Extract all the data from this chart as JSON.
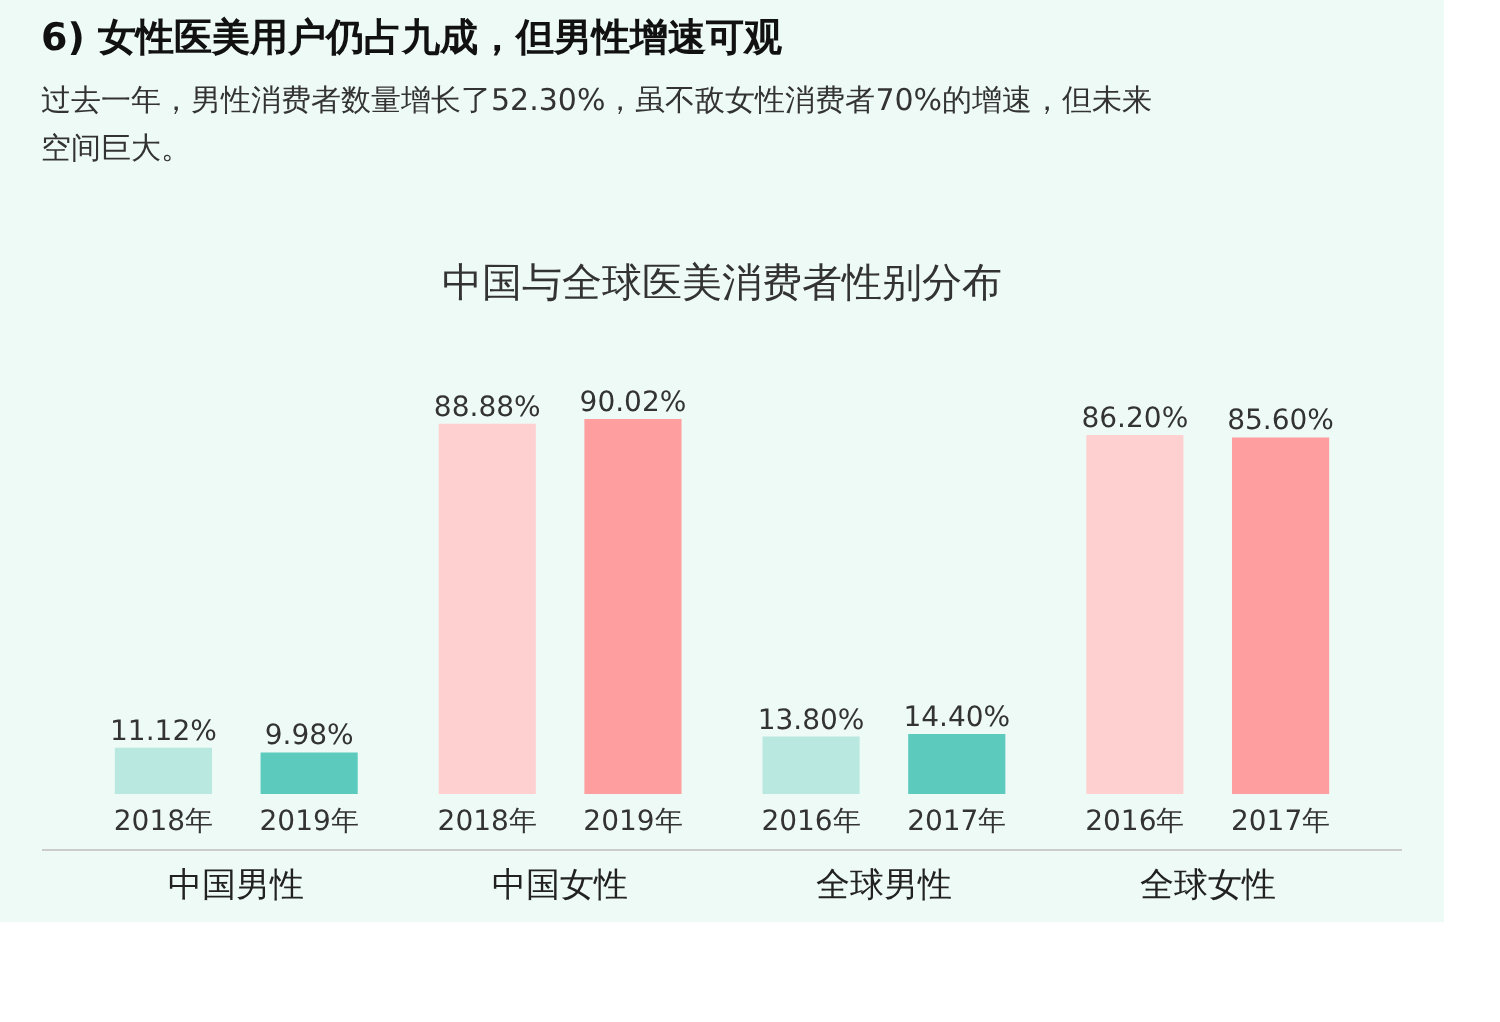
{
  "chart_data": {
    "type": "bar",
    "title": "6) 女性医美用户仍占九成，但男性增速可观",
    "subtitle": "过去一年，男性消费者数量增长了52.30%，虽不敌女性消费者70%的增速，但未来空间巨大。",
    "categories": [
      "2018年",
      "2019年",
      "2018年",
      "2019年",
      "2016年",
      "2017年",
      "2016年",
      "2017年"
    ],
    "values": [
      11.12,
      9.98,
      88.88,
      90.02,
      13.8,
      14.4,
      86.2,
      85.6
    ],
    "colors": [
      "#b8e8e0",
      "#5ccbbd",
      "#ffd0d0",
      "#ff9e9e",
      "#b8e8e0",
      "#5ccbbd",
      "#ffd0d0",
      "#ff9e9e"
    ],
    "value_labels": [
      "11.12%",
      "9.98%",
      "88.88%",
      "90.02%",
      "13.80%",
      "14.40%",
      "86.20%",
      "85.60%"
    ],
    "annotations": [
      "中国与全球医美消费者性别分布",
      "中国男性",
      "中国女性",
      "全球男性",
      "全球女性"
    ]
  }
}
